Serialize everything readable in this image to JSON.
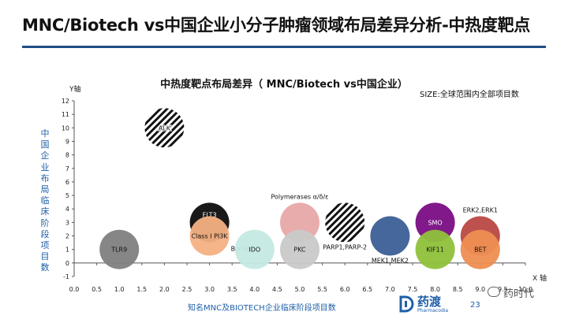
{
  "header": {
    "title": "MNC/Biotech vs中国企业小分子肿瘤领域布局差异分析-中热度靶点"
  },
  "footer": {
    "caption": "知名MNC及BIOTECH企业临床阶段项目数",
    "page_number": "23"
  },
  "logo": {
    "name": "药渡",
    "subtitle": "Pharmacodia"
  },
  "watermark": {
    "text": "药时代"
  },
  "colors": {
    "accent": "#1f4e86",
    "axis_side_label": "#1f5fa8"
  },
  "chart_data": {
    "type": "bubble",
    "title": "中热度靶点布局差异（ MNC/Biotech vs中国企业）",
    "size_note": "SIZE:全球范围内全部项目数",
    "xlabel": "X 轴",
    "ylabel": "Y轴",
    "y_side_label": "中国企业布局临床阶段项目数",
    "xlim": [
      0,
      10
    ],
    "ylim": [
      -1,
      12
    ],
    "x_ticks": [
      "0.0",
      "0.5",
      "1.0",
      "1.5",
      "2.0",
      "2.5",
      "3.0",
      "3.5",
      "4.0",
      "4.5",
      "5.0",
      "5.5",
      "6.0",
      "6.5",
      "7.0",
      "7.5",
      "8.0",
      "8.5",
      "9.0",
      "9.5",
      "10.0"
    ],
    "y_ticks": [
      "-1",
      "0",
      "1",
      "2",
      "3",
      "4",
      "5",
      "6",
      "7",
      "8",
      "9",
      "10",
      "11",
      "12"
    ],
    "grid": false,
    "points": [
      {
        "label": "ALK",
        "x": 2,
        "y": 10,
        "color": "#222222",
        "pattern": "hatch",
        "label_pos": "center"
      },
      {
        "label": "TLR9",
        "x": 1,
        "y": 1,
        "color": "#7f7f7f",
        "pattern": "solid",
        "label_pos": "center"
      },
      {
        "label": "FLT3",
        "x": 3,
        "y": 3,
        "color": "#0d0d0d",
        "pattern": "solid",
        "label_pos": "center-top"
      },
      {
        "label": "Class I PI3K",
        "x": 3,
        "y": 2,
        "color": "#f4b183",
        "pattern": "solid",
        "label_pos": "center"
      },
      {
        "label": "Bcr-Abl",
        "x": 3,
        "y": 2,
        "color": "#f4b183",
        "pattern": "none",
        "label_pos": "right"
      },
      {
        "label": "IDO",
        "x": 4,
        "y": 1,
        "color": "#c5e9e4",
        "pattern": "solid",
        "label_pos": "center"
      },
      {
        "label": "Polymerases α/δ/ε",
        "x": 5,
        "y": 3,
        "color": "#e8a8a8",
        "pattern": "solid",
        "label_pos": "above"
      },
      {
        "label": "PKC",
        "x": 5,
        "y": 1,
        "color": "#c9c9c9",
        "pattern": "solid",
        "label_pos": "center"
      },
      {
        "label": "PARP1,PARP-2",
        "x": 6,
        "y": 3,
        "color": "#222222",
        "pattern": "hatch",
        "label_pos": "below"
      },
      {
        "label": "MEK1,MEK2",
        "x": 7,
        "y": 2,
        "color": "#3b5f96",
        "pattern": "solid",
        "label_pos": "below"
      },
      {
        "label": "SMO",
        "x": 8,
        "y": 3,
        "color": "#7a0d84",
        "pattern": "solid",
        "label_pos": "center"
      },
      {
        "label": "KIF11",
        "x": 8,
        "y": 1,
        "color": "#8fc13a",
        "pattern": "solid",
        "label_pos": "center"
      },
      {
        "label": "ERK2,ERK1",
        "x": 9,
        "y": 2,
        "color": "#b84845",
        "pattern": "solid",
        "label_pos": "above"
      },
      {
        "label": "BET",
        "x": 9,
        "y": 1,
        "color": "#ee8e52",
        "pattern": "solid",
        "label_pos": "center"
      }
    ]
  }
}
